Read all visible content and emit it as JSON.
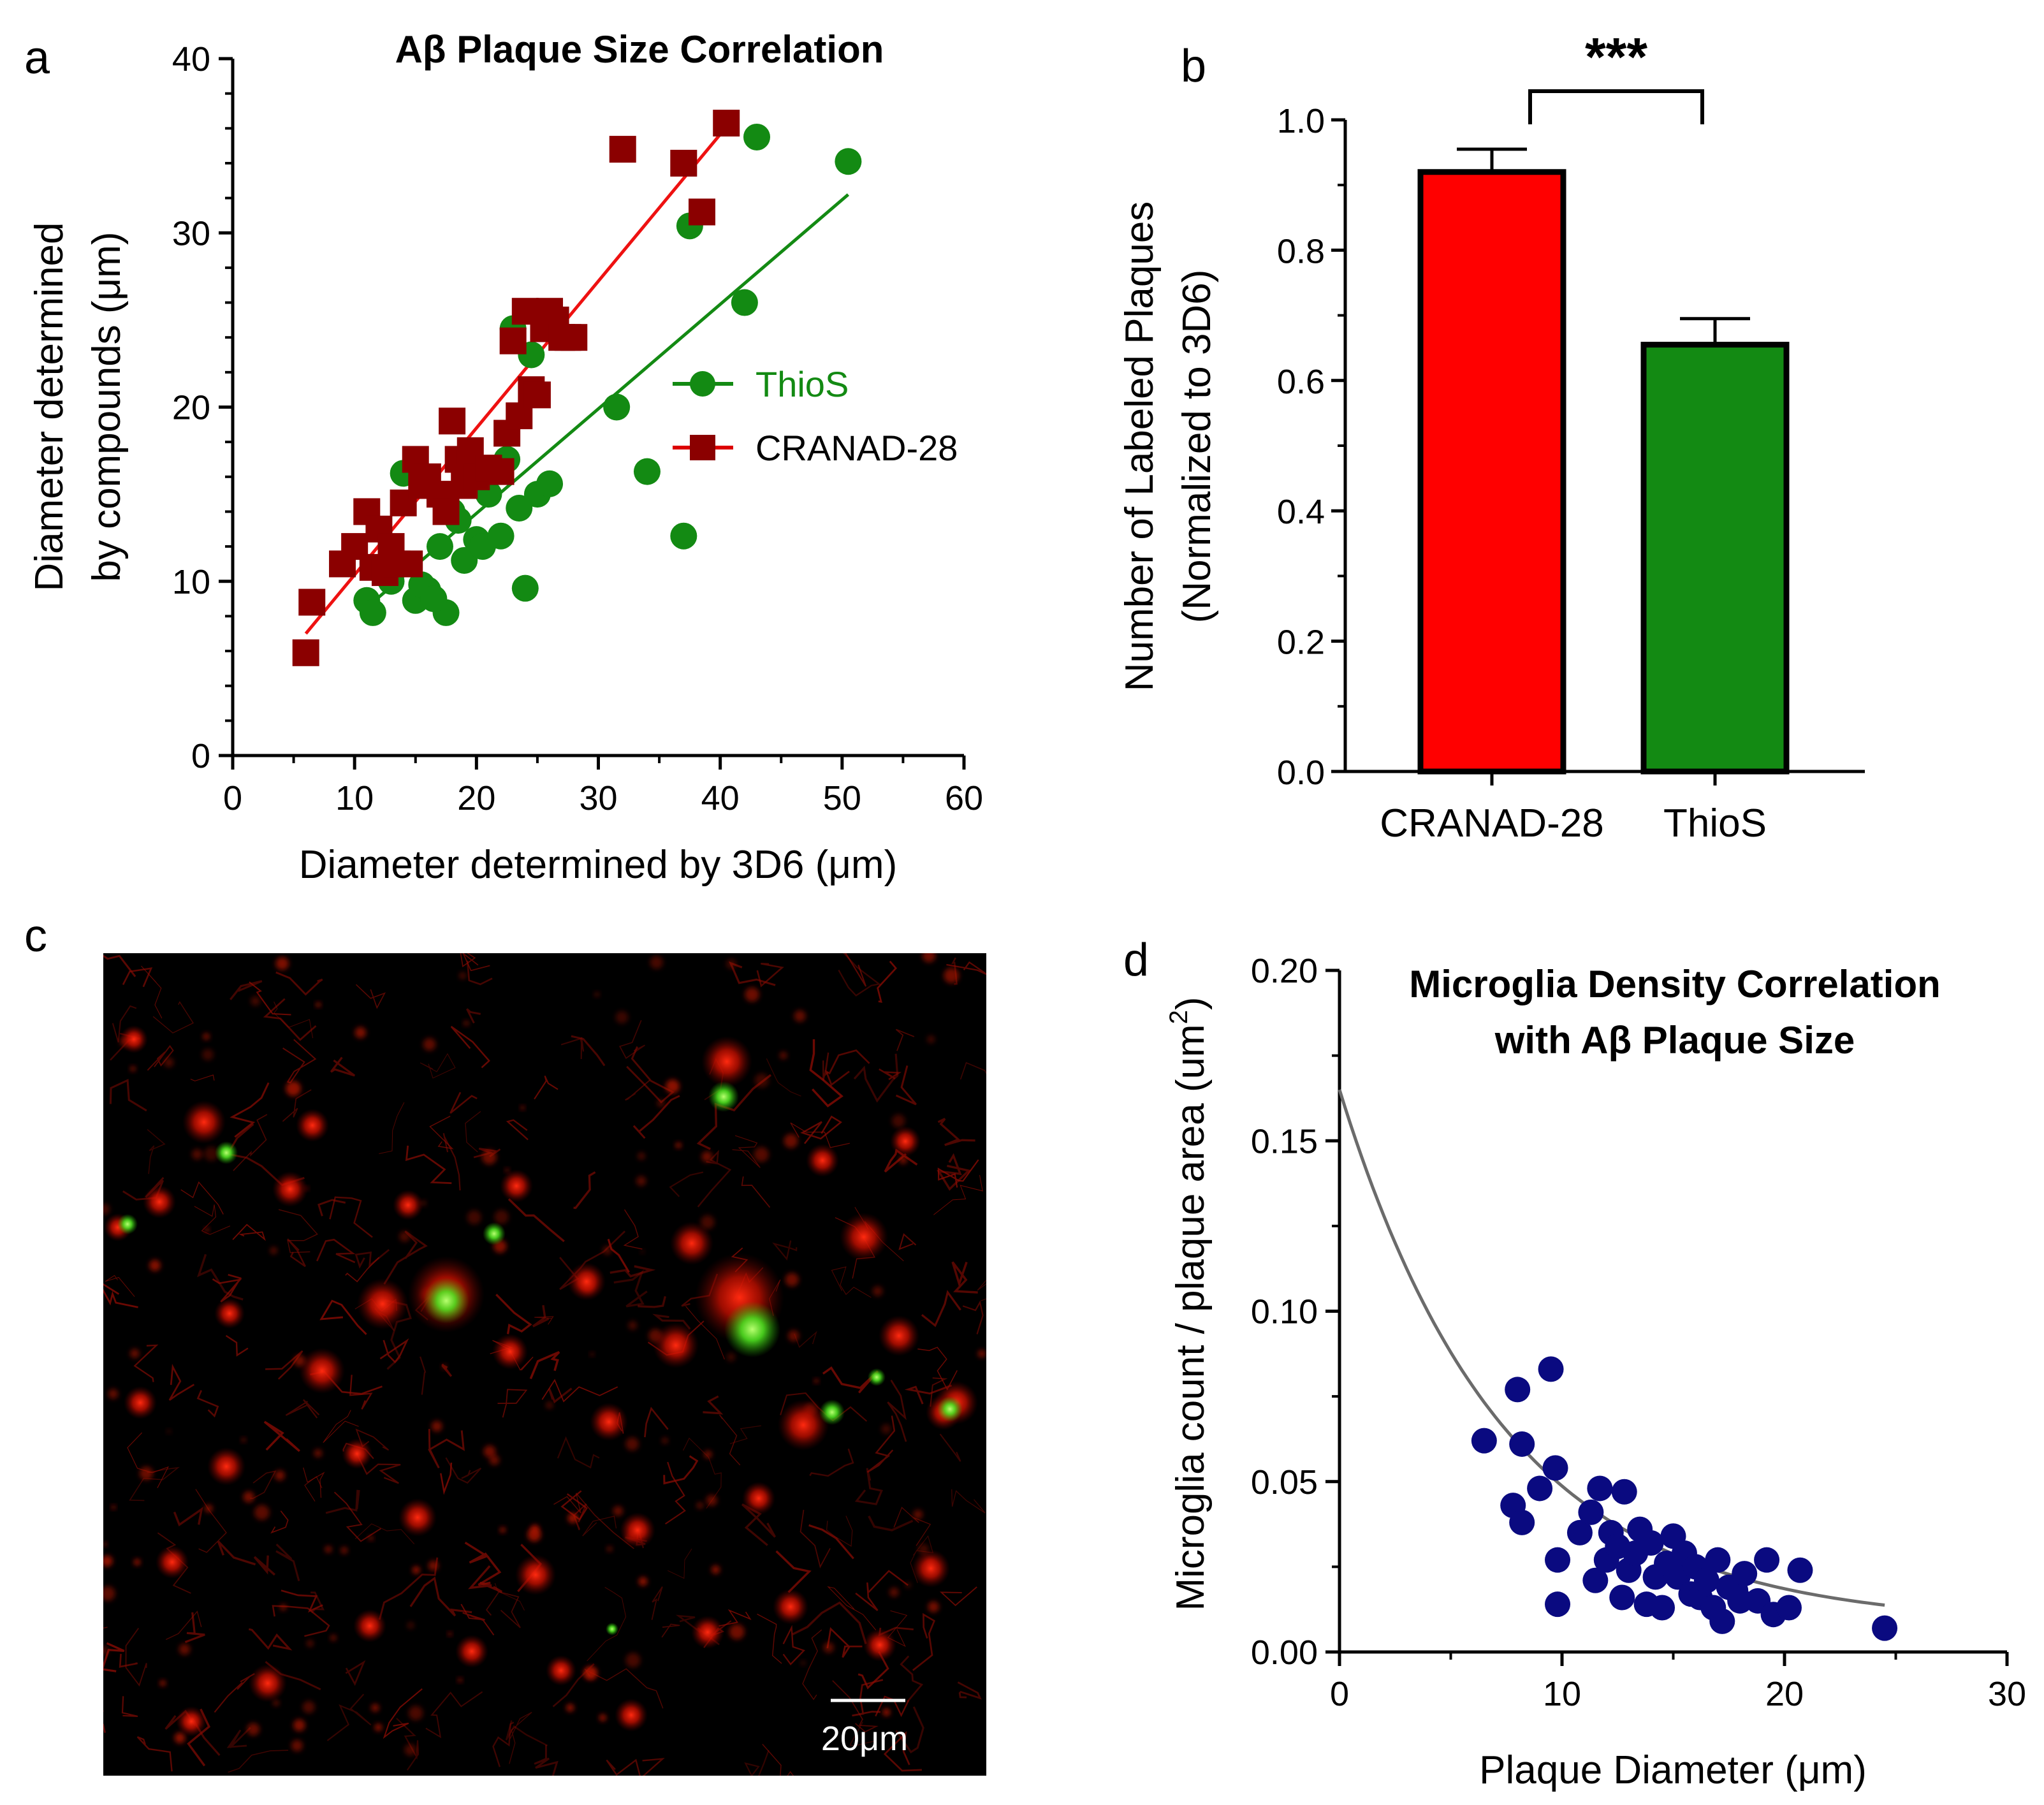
{
  "panel_labels": {
    "a": "a",
    "b": "b",
    "c": "c",
    "d": "d"
  },
  "chart_data": [
    {
      "id": "a",
      "type": "scatter",
      "title": "Aβ Plaque Size Correlation",
      "xlabel": "Diameter determined by 3D6 (μm)",
      "ylabel_line1": "Diameter determined",
      "ylabel_line2": "by compounds (μm)",
      "xlim": [
        0,
        60
      ],
      "ylim": [
        0,
        40
      ],
      "xticks": [
        "0",
        "10",
        "20",
        "30",
        "40",
        "50",
        "60"
      ],
      "yticks": [
        "0",
        "10",
        "20",
        "30",
        "40"
      ],
      "series": [
        {
          "name": "ThioS",
          "color": "#138a13",
          "marker": "circle",
          "fit": {
            "x0": 11,
            "y0": 8.5,
            "x1": 50.5,
            "y1": 32.2
          },
          "points": [
            [
              11,
              8.9
            ],
            [
              11.5,
              8.2
            ],
            [
              13,
              10
            ],
            [
              14,
              16.2
            ],
            [
              15,
              8.9
            ],
            [
              16,
              9.5
            ],
            [
              17,
              12
            ],
            [
              17.5,
              8.2
            ],
            [
              18,
              14
            ],
            [
              19,
              11.2
            ],
            [
              20,
              12.4
            ],
            [
              20.5,
              12
            ],
            [
              21,
              15
            ],
            [
              22,
              12.6
            ],
            [
              22.5,
              17
            ],
            [
              23,
              24.5
            ],
            [
              23.5,
              14.2
            ],
            [
              24,
              9.6
            ],
            [
              24.5,
              23
            ],
            [
              25,
              15
            ],
            [
              26,
              15.6
            ],
            [
              31.5,
              20
            ],
            [
              34,
              16.3
            ],
            [
              37,
              12.6
            ],
            [
              37.5,
              30.4
            ],
            [
              42,
              26
            ],
            [
              43,
              35.5
            ],
            [
              50.5,
              34.1
            ],
            [
              15.5,
              9.8
            ],
            [
              16.5,
              9
            ],
            [
              18.5,
              13.5
            ]
          ]
        },
        {
          "name": "CRANAD-28",
          "color": "#8b0000",
          "marker": "square",
          "fit": {
            "x0": 6,
            "y0": 7,
            "x1": 41,
            "y1": 36.5
          },
          "points": [
            [
              6,
              5.9
            ],
            [
              6.5,
              8.8
            ],
            [
              9,
              11
            ],
            [
              10,
              12
            ],
            [
              11,
              14
            ],
            [
              11.5,
              10.8
            ],
            [
              12,
              13
            ],
            [
              12.5,
              10.5
            ],
            [
              13,
              12
            ],
            [
              13.5,
              11
            ],
            [
              14,
              14.5
            ],
            [
              14.5,
              11
            ],
            [
              15,
              17
            ],
            [
              15.5,
              15.5
            ],
            [
              16,
              16
            ],
            [
              17,
              15
            ],
            [
              17.5,
              14
            ],
            [
              18,
              19.2
            ],
            [
              18.5,
              17
            ],
            [
              19,
              15.5
            ],
            [
              19.5,
              17.5
            ],
            [
              20,
              16
            ],
            [
              21,
              16.5
            ],
            [
              22,
              16.3
            ],
            [
              22.5,
              18.5
            ],
            [
              23,
              23.8
            ],
            [
              23.5,
              19.5
            ],
            [
              24,
              25.5
            ],
            [
              24.5,
              21
            ],
            [
              25,
              20.7
            ],
            [
              25.5,
              24.5
            ],
            [
              26,
              25.5
            ],
            [
              26.5,
              25
            ],
            [
              27,
              24
            ],
            [
              27.5,
              24
            ],
            [
              28,
              24
            ],
            [
              32,
              34.8
            ],
            [
              37,
              34
            ],
            [
              38.5,
              31.2
            ],
            [
              40.5,
              36.3
            ]
          ]
        }
      ]
    },
    {
      "id": "b",
      "type": "bar",
      "ylabel_line1": "Number of Labeled Plaques",
      "ylabel_line2": "(Normalized to 3D6)",
      "categories": [
        "CRANAD-28",
        "ThioS"
      ],
      "values": [
        0.92,
        0.655
      ],
      "errors": [
        0.035,
        0.04
      ],
      "colors": [
        "#ff0000",
        "#138a13"
      ],
      "ylim": [
        0,
        1.0
      ],
      "yticks": [
        "0.0",
        "0.2",
        "0.4",
        "0.6",
        "0.8",
        "1.0"
      ],
      "significance": "***"
    },
    {
      "id": "d",
      "type": "scatter",
      "title_line1": "Microglia Density Correlation",
      "title_line2": "with Aβ Plaque Size",
      "xlabel": "Plaque Diameter (μm)",
      "ylabel": "Microglia count / plaque area (um",
      "ylabel_sup": "2",
      "ylabel_end": ")",
      "xlim": [
        0,
        30
      ],
      "ylim": [
        0,
        0.2
      ],
      "xticks": [
        "0",
        "10",
        "20",
        "30"
      ],
      "yticks": [
        "0.00",
        "0.05",
        "0.10",
        "0.15",
        "0.20"
      ],
      "fit": {
        "type": "exp_decay",
        "a": 0.157,
        "k": 0.135,
        "c": 0.008,
        "x_start": 0,
        "x_end": 24.5
      },
      "series": [
        {
          "name": "plaques",
          "color": "#0a0a80",
          "points": [
            [
              6.5,
              0.062
            ],
            [
              7.8,
              0.043
            ],
            [
              8,
              0.077
            ],
            [
              8.2,
              0.061
            ],
            [
              8.2,
              0.038
            ],
            [
              9,
              0.048
            ],
            [
              9.5,
              0.083
            ],
            [
              9.7,
              0.054
            ],
            [
              9.8,
              0.027
            ],
            [
              9.8,
              0.014
            ],
            [
              10.8,
              0.035
            ],
            [
              11.3,
              0.041
            ],
            [
              11.5,
              0.021
            ],
            [
              11.7,
              0.048
            ],
            [
              12,
              0.027
            ],
            [
              12.2,
              0.035
            ],
            [
              12.5,
              0.031
            ],
            [
              12.7,
              0.016
            ],
            [
              12.8,
              0.047
            ],
            [
              13,
              0.024
            ],
            [
              13.3,
              0.029
            ],
            [
              13.5,
              0.036
            ],
            [
              13.8,
              0.014
            ],
            [
              14,
              0.032
            ],
            [
              14.2,
              0.022
            ],
            [
              14.5,
              0.013
            ],
            [
              14.7,
              0.026
            ],
            [
              15,
              0.034
            ],
            [
              15.2,
              0.022
            ],
            [
              15.5,
              0.029
            ],
            [
              15.8,
              0.017
            ],
            [
              16,
              0.025
            ],
            [
              16.2,
              0.016
            ],
            [
              16.5,
              0.021
            ],
            [
              16.8,
              0.013
            ],
            [
              17,
              0.027
            ],
            [
              17.2,
              0.009
            ],
            [
              17.5,
              0.019
            ],
            [
              17.8,
              0.018
            ],
            [
              18,
              0.015
            ],
            [
              18.2,
              0.023
            ],
            [
              18.8,
              0.015
            ],
            [
              19.2,
              0.027
            ],
            [
              19.5,
              0.011
            ],
            [
              20.2,
              0.013
            ],
            [
              20.7,
              0.024
            ],
            [
              24.5,
              0.007
            ]
          ]
        }
      ]
    }
  ],
  "micrograph": {
    "scale_bar_label": "20μm"
  }
}
